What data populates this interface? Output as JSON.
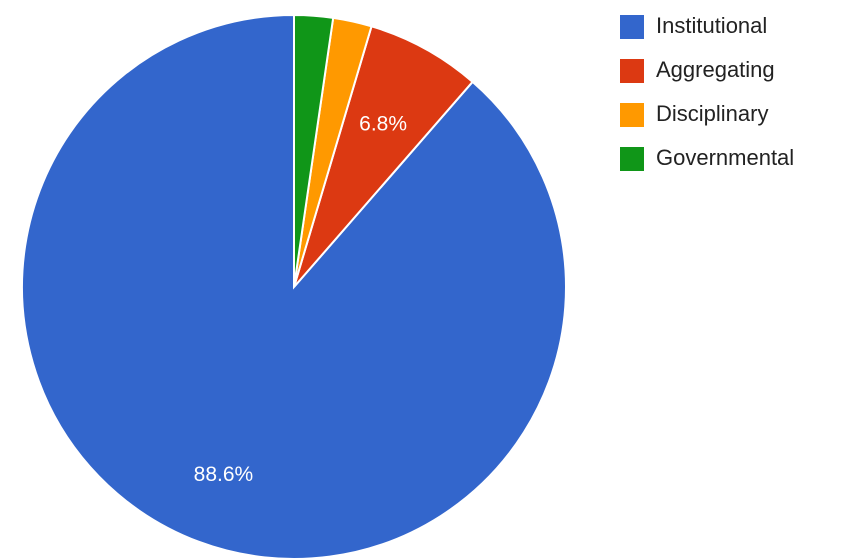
{
  "chart_data": {
    "type": "pie",
    "title": "",
    "legend_position": "right",
    "slices": [
      {
        "label": "Institutional",
        "value": 88.6,
        "color": "#3366cc",
        "data_label": "88.6%"
      },
      {
        "label": "Aggregating",
        "value": 6.8,
        "color": "#dc3912",
        "data_label": "6.8%"
      },
      {
        "label": "Disciplinary",
        "value": 2.3,
        "color": "#ff9900",
        "data_label": ""
      },
      {
        "label": "Governmental",
        "value": 2.3,
        "color": "#109618",
        "data_label": ""
      }
    ]
  }
}
